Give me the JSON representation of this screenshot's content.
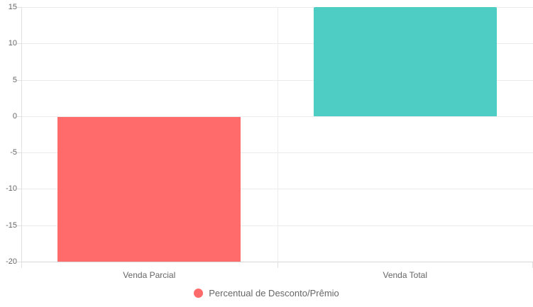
{
  "chart_data": {
    "type": "bar",
    "title": "",
    "xlabel": "",
    "ylabel": "",
    "categories": [
      "Venda Parcial",
      "Venda Total"
    ],
    "series": [
      {
        "name": "Percentual de Desconto/Prêmio",
        "values": [
          -20,
          15
        ],
        "colors": [
          "#FF6B6B",
          "#4ECDC4"
        ]
      }
    ],
    "ylim": [
      -20,
      15
    ],
    "yticks": [
      15,
      10,
      5,
      0,
      -5,
      -10,
      -15,
      -20
    ],
    "grid": true,
    "legend_position": "bottom",
    "legend": [
      {
        "label": "Percentual de Desconto/Prêmio",
        "color": "#FF6B6B"
      }
    ]
  },
  "colors": {
    "background": "#ffffff",
    "grid": "#ececec",
    "baseline": "#d6d6d6",
    "axis_line": "#e0e0e0",
    "text": "#666666"
  }
}
